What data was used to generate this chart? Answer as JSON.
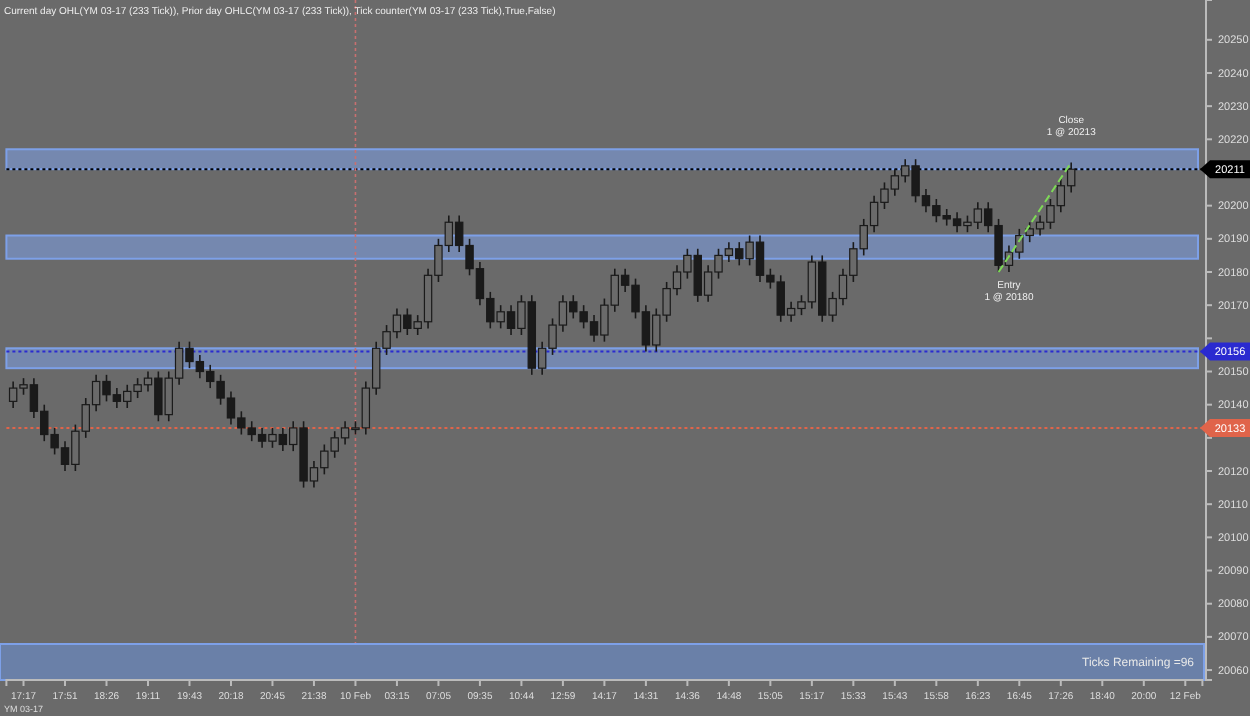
{
  "chart_data": {
    "type": "candlestick",
    "title": "Current day OHL(YM 03-17 (233 Tick)), Prior day OHLC(YM 03-17 (233 Tick)), Tick counter(YM 03-17 (233 Tick),True,False)",
    "categories": [
      null,
      "17:17",
      null,
      null,
      null,
      "17:51",
      null,
      null,
      null,
      "18:26",
      null,
      null,
      null,
      "19:11",
      null,
      null,
      null,
      "19:43",
      null,
      null,
      null,
      "20:18",
      null,
      null,
      null,
      "20:45",
      null,
      null,
      null,
      "21:38",
      null,
      null,
      null,
      "10 Feb",
      null,
      null,
      null,
      "03:15",
      null,
      null,
      null,
      "07:05",
      null,
      null,
      null,
      "09:35",
      null,
      null,
      null,
      "10:44",
      null,
      null,
      null,
      "12:59",
      null,
      null,
      null,
      "14:17",
      null,
      null,
      null,
      "14:31",
      null,
      null,
      null,
      "14:36",
      null,
      null,
      null,
      "14:48",
      null,
      null,
      null,
      "15:05",
      null,
      null,
      null,
      "15:17",
      null,
      null,
      null,
      "15:33",
      null,
      null,
      null,
      "15:43",
      null,
      null,
      null,
      "15:58",
      null,
      null,
      null,
      "16:23",
      null,
      null,
      null,
      "16:45",
      null,
      null,
      null,
      "17:26",
      null,
      null,
      null,
      "18:40",
      null,
      null,
      null,
      "20:00",
      null,
      null,
      null,
      "12 Feb",
      null
    ],
    "series": [
      {
        "type": "candlestick",
        "color": "#1a1a1a",
        "ohlc": [
          [
            20141,
            20147,
            20139,
            20145
          ],
          [
            20145,
            20148,
            20143,
            20146
          ],
          [
            20146,
            20148,
            20136,
            20138
          ],
          [
            20138,
            20140,
            20129,
            20131
          ],
          [
            20131,
            20133,
            20125,
            20127
          ],
          [
            20127,
            20129,
            20120,
            20122
          ],
          [
            20122,
            20134,
            20120,
            20132
          ],
          [
            20132,
            20142,
            20130,
            20140
          ],
          [
            20140,
            20149,
            20138,
            20147
          ],
          [
            20147,
            20149,
            20141,
            20143
          ],
          [
            20143,
            20145,
            20139,
            20141
          ],
          [
            20141,
            20146,
            20139,
            20144
          ],
          [
            20144,
            20148,
            20142,
            20146
          ],
          [
            20146,
            20150,
            20144,
            20148
          ],
          [
            20148,
            20150,
            20135,
            20137
          ],
          [
            20137,
            20150,
            20135,
            20148
          ],
          [
            20148,
            20159,
            20146,
            20157
          ],
          [
            20157,
            20159,
            20151,
            20153
          ],
          [
            20153,
            20155,
            20148,
            20150
          ],
          [
            20150,
            20152,
            20145,
            20147
          ],
          [
            20147,
            20149,
            20140,
            20142
          ],
          [
            20142,
            20144,
            20134,
            20136
          ],
          [
            20136,
            20138,
            20131,
            20133
          ],
          [
            20133,
            20135,
            20129,
            20131
          ],
          [
            20131,
            20133,
            20127,
            20129
          ],
          [
            20129,
            20133,
            20127,
            20131
          ],
          [
            20131,
            20133,
            20126,
            20128
          ],
          [
            20128,
            20135,
            20126,
            20133
          ],
          [
            20133,
            20135,
            20115,
            20117
          ],
          [
            20117,
            20123,
            20115,
            20121
          ],
          [
            20121,
            20128,
            20119,
            20126
          ],
          [
            20126,
            20132,
            20124,
            20130
          ],
          [
            20130,
            20135,
            20128,
            20133
          ],
          [
            20133,
            20135,
            20131,
            20133
          ],
          [
            20133,
            20147,
            20131,
            20145
          ],
          [
            20145,
            20159,
            20143,
            20157
          ],
          [
            20157,
            20164,
            20155,
            20162
          ],
          [
            20162,
            20169,
            20160,
            20167
          ],
          [
            20167,
            20169,
            20161,
            20163
          ],
          [
            20163,
            20167,
            20161,
            20165
          ],
          [
            20165,
            20181,
            20163,
            20179
          ],
          [
            20179,
            20190,
            20177,
            20188
          ],
          [
            20188,
            20197,
            20186,
            20195
          ],
          [
            20195,
            20197,
            20186,
            20188
          ],
          [
            20188,
            20190,
            20179,
            20181
          ],
          [
            20181,
            20183,
            20170,
            20172
          ],
          [
            20172,
            20174,
            20163,
            20165
          ],
          [
            20165,
            20170,
            20163,
            20168
          ],
          [
            20168,
            20170,
            20161,
            20163
          ],
          [
            20163,
            20173,
            20161,
            20171
          ],
          [
            20171,
            20173,
            20149,
            20151
          ],
          [
            20151,
            20159,
            20149,
            20157
          ],
          [
            20157,
            20166,
            20155,
            20164
          ],
          [
            20164,
            20173,
            20162,
            20171
          ],
          [
            20171,
            20173,
            20166,
            20168
          ],
          [
            20168,
            20170,
            20163,
            20165
          ],
          [
            20165,
            20167,
            20159,
            20161
          ],
          [
            20161,
            20172,
            20159,
            20170
          ],
          [
            20170,
            20181,
            20168,
            20179
          ],
          [
            20179,
            20181,
            20174,
            20176
          ],
          [
            20176,
            20178,
            20166,
            20168
          ],
          [
            20168,
            20170,
            20156,
            20158
          ],
          [
            20158,
            20169,
            20156,
            20167
          ],
          [
            20167,
            20177,
            20165,
            20175
          ],
          [
            20175,
            20182,
            20173,
            20180
          ],
          [
            20180,
            20187,
            20178,
            20185
          ],
          [
            20185,
            20187,
            20171,
            20173
          ],
          [
            20173,
            20182,
            20171,
            20180
          ],
          [
            20180,
            20187,
            20178,
            20185
          ],
          [
            20185,
            20189,
            20183,
            20187
          ],
          [
            20187,
            20189,
            20182,
            20184
          ],
          [
            20184,
            20191,
            20182,
            20189
          ],
          [
            20189,
            20191,
            20177,
            20179
          ],
          [
            20179,
            20181,
            20175,
            20177
          ],
          [
            20177,
            20179,
            20165,
            20167
          ],
          [
            20167,
            20171,
            20165,
            20169
          ],
          [
            20169,
            20173,
            20167,
            20171
          ],
          [
            20171,
            20185,
            20169,
            20183
          ],
          [
            20183,
            20185,
            20165,
            20167
          ],
          [
            20167,
            20174,
            20165,
            20172
          ],
          [
            20172,
            20181,
            20170,
            20179
          ],
          [
            20179,
            20189,
            20177,
            20187
          ],
          [
            20187,
            20196,
            20185,
            20194
          ],
          [
            20194,
            20203,
            20192,
            20201
          ],
          [
            20201,
            20207,
            20199,
            20205
          ],
          [
            20205,
            20211,
            20203,
            20209
          ],
          [
            20209,
            20214,
            20207,
            20212
          ],
          [
            20212,
            20214,
            20201,
            20203
          ],
          [
            20203,
            20205,
            20198,
            20200
          ],
          [
            20200,
            20202,
            20195,
            20197
          ],
          [
            20197,
            20199,
            20194,
            20196
          ],
          [
            20196,
            20198,
            20192,
            20194
          ],
          [
            20194,
            20197,
            20192,
            20195
          ],
          [
            20195,
            20201,
            20193,
            20199
          ],
          [
            20199,
            20201,
            20192,
            20194
          ],
          [
            20194,
            20196,
            20180,
            20182
          ],
          [
            20182,
            20188,
            20180,
            20186
          ],
          [
            20186,
            20193,
            20184,
            20191
          ],
          [
            20191,
            20195,
            20189,
            20193
          ],
          [
            20193,
            20197,
            20191,
            20195
          ],
          [
            20195,
            20202,
            20193,
            20200
          ],
          [
            20200,
            20208,
            20198,
            20206
          ],
          [
            20206,
            20213,
            20204,
            20211
          ],
          null,
          null,
          null,
          null,
          null,
          null,
          null,
          null,
          null,
          null,
          null,
          null
        ]
      },
      {
        "type": "line",
        "color": "#7ed957",
        "line_style": "dashed",
        "values": [
          null,
          null,
          null,
          null,
          null,
          null,
          null,
          null,
          null,
          null,
          null,
          null,
          null,
          null,
          null,
          null,
          null,
          null,
          null,
          null,
          null,
          null,
          null,
          null,
          null,
          null,
          null,
          null,
          null,
          null,
          null,
          null,
          null,
          null,
          null,
          null,
          null,
          null,
          null,
          null,
          null,
          null,
          null,
          null,
          null,
          null,
          null,
          null,
          null,
          null,
          null,
          null,
          null,
          null,
          null,
          null,
          null,
          null,
          null,
          null,
          null,
          null,
          null,
          null,
          null,
          null,
          null,
          null,
          null,
          null,
          null,
          null,
          null,
          null,
          null,
          null,
          null,
          null,
          null,
          null,
          null,
          null,
          null,
          null,
          null,
          null,
          null,
          null,
          null,
          null,
          null,
          null,
          null,
          null,
          null,
          20180,
          null,
          null,
          null,
          null,
          null,
          null,
          20213,
          null,
          null,
          null,
          null,
          null,
          null,
          null,
          null,
          null,
          null,
          null,
          null
        ]
      }
    ],
    "ylim": [
      20057,
      20262
    ],
    "yticks": [
      20060,
      20070,
      20080,
      20090,
      20100,
      20110,
      20120,
      {
        "value": 20130,
        "label": null
      },
      20140,
      20150,
      {
        "value": 20160,
        "label": null
      },
      20170,
      20180,
      20190,
      20200,
      {
        "value": 20210,
        "label": null
      },
      20220,
      20230,
      20240,
      20250
    ],
    "bands": [
      {
        "axis": "y",
        "from": 20151,
        "to": 20157,
        "label": null,
        "color": "#7da0e8"
      },
      {
        "axis": "y",
        "from": 20184,
        "to": 20191,
        "label": null,
        "color": "#7da0e8"
      },
      {
        "axis": "y",
        "from": 20211,
        "to": 20217,
        "label": null,
        "color": "#7da0e8"
      }
    ],
    "ref_lines": [
      {
        "axis": "y",
        "value": 20156,
        "label": "20156",
        "color": "#2a2ad0",
        "line_style": "dotted"
      },
      {
        "axis": "y",
        "value": 20133,
        "label": "20133",
        "color": "#e0644a",
        "line_style": "dotted"
      },
      {
        "axis": "y",
        "value": 20211,
        "label": "20211",
        "color": "#000000",
        "line_style": "dotted"
      },
      {
        "axis": "x",
        "value": "10 Feb",
        "label": null,
        "color": "#c87070",
        "line_style": "dotted"
      }
    ],
    "annotations": [
      "Ticks Remaining =96",
      "YM 03-17",
      {
        "text": "Entry\n1 @ 20180",
        "y": 20180
      },
      {
        "text": "Close\n1 @ 20213",
        "y": 20213
      }
    ]
  }
}
